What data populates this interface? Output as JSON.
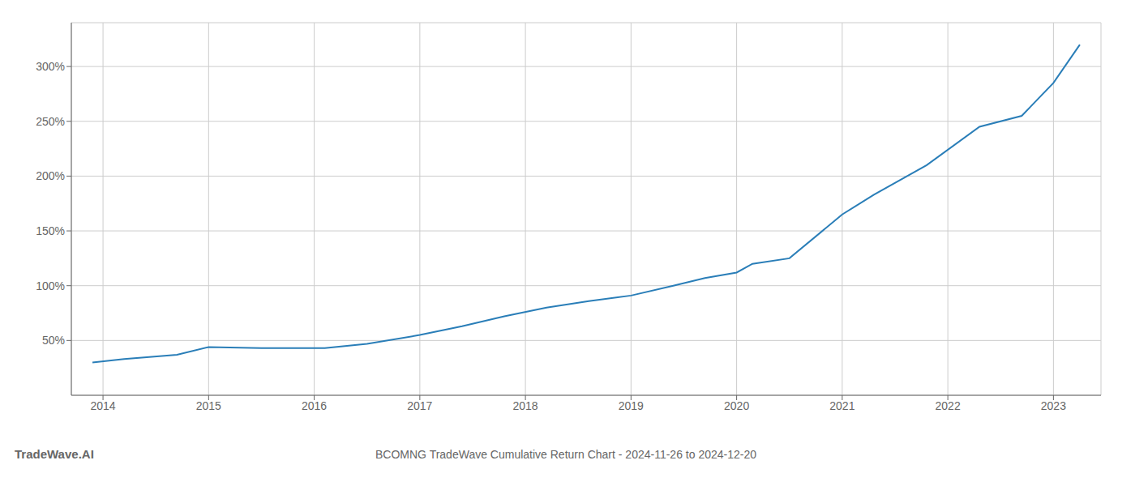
{
  "chart_data": {
    "type": "line",
    "title": "BCOMNG TradeWave Cumulative Return Chart - 2024-11-26 to 2024-12-20",
    "annotations": [
      "TradeWave.AI"
    ],
    "x": [
      2013.9,
      2014.2,
      2014.7,
      2015.0,
      2015.5,
      2015.9,
      2016.1,
      2016.5,
      2017.0,
      2017.4,
      2017.8,
      2018.2,
      2018.6,
      2019.0,
      2019.4,
      2019.7,
      2020.0,
      2020.15,
      2020.5,
      2021.0,
      2021.3,
      2021.8,
      2022.3,
      2022.7,
      2023.0,
      2023.25
    ],
    "values": [
      30,
      33,
      37,
      44,
      43,
      43,
      43,
      47,
      55,
      63,
      72,
      80,
      86,
      91,
      100,
      107,
      112,
      120,
      125,
      165,
      183,
      210,
      245,
      255,
      285,
      320
    ],
    "color": "#2a7eb8",
    "xlim": [
      2013.7,
      2023.45
    ],
    "xticks": [
      2014,
      2015,
      2016,
      2017,
      2018,
      2019,
      2020,
      2021,
      2022,
      2023
    ],
    "ylim": [
      0,
      340
    ],
    "yticks": [
      {
        "value": 50,
        "label": "50%"
      },
      {
        "value": 100,
        "label": "100%"
      },
      {
        "value": 150,
        "label": "150%"
      },
      {
        "value": 200,
        "label": "200%"
      },
      {
        "value": 250,
        "label": "250%"
      },
      {
        "value": 300,
        "label": "300%"
      }
    ],
    "grid": true
  }
}
